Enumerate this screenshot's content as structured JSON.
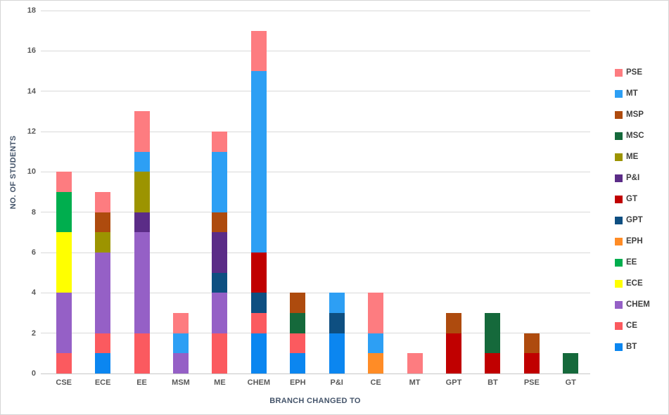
{
  "window": {
    "background": "#FFFFFF",
    "border_color": "#D6D6D6"
  },
  "axes": {
    "tick_color": "#595959",
    "title_color": "#44546A",
    "gridline_color": "#D9D9D9"
  },
  "chart_data": {
    "type": "bar",
    "stacked": true,
    "title": "",
    "xlabel": "BRANCH CHANGED TO",
    "ylabel": "NO. OF STUDENTS",
    "ylim": [
      0,
      18
    ],
    "yticks": [
      0,
      2,
      4,
      6,
      8,
      10,
      12,
      14,
      16,
      18
    ],
    "grid": true,
    "legend_position": "right",
    "categories": [
      "CSE",
      "ECE",
      "EE",
      "MSM",
      "ME",
      "CHEM",
      "EPH",
      "P&I",
      "CE",
      "MT",
      "GPT",
      "BT",
      "PSE",
      "GT"
    ],
    "series": [
      {
        "name": "BT",
        "color": "#0B86F0",
        "values": [
          0,
          1,
          0,
          0,
          0,
          2,
          1,
          2,
          0,
          0,
          0,
          0,
          0,
          0
        ]
      },
      {
        "name": "CE",
        "color": "#FB5A5F",
        "values": [
          1,
          1,
          2,
          0,
          2,
          1,
          1,
          0,
          0,
          0,
          0,
          0,
          0,
          0
        ]
      },
      {
        "name": "CHEM",
        "color": "#9560C6",
        "values": [
          3,
          4,
          5,
          1,
          2,
          0,
          0,
          0,
          0,
          0,
          0,
          0,
          0,
          0
        ]
      },
      {
        "name": "ECE",
        "color": "#FFFF00",
        "values": [
          3,
          0,
          0,
          0,
          0,
          0,
          0,
          0,
          0,
          0,
          0,
          0,
          0,
          0
        ]
      },
      {
        "name": "EE",
        "color": "#00AE4E",
        "values": [
          2,
          0,
          0,
          0,
          0,
          0,
          0,
          0,
          0,
          0,
          0,
          0,
          0,
          0
        ]
      },
      {
        "name": "EPH",
        "color": "#FF8C26",
        "values": [
          0,
          0,
          0,
          0,
          0,
          0,
          0,
          0,
          1,
          0,
          0,
          0,
          0,
          0
        ]
      },
      {
        "name": "GPT",
        "color": "#0E4F81",
        "values": [
          0,
          0,
          0,
          0,
          1,
          1,
          0,
          1,
          0,
          0,
          0,
          0,
          0,
          0
        ]
      },
      {
        "name": "GT",
        "color": "#C00000",
        "values": [
          0,
          0,
          0,
          0,
          0,
          2,
          0,
          0,
          0,
          0,
          2,
          1,
          1,
          0
        ]
      },
      {
        "name": "P&I",
        "color": "#5B2C87",
        "values": [
          0,
          0,
          1,
          0,
          2,
          0,
          0,
          0,
          0,
          0,
          0,
          0,
          0,
          0
        ]
      },
      {
        "name": "ME",
        "color": "#9C9400",
        "values": [
          0,
          1,
          2,
          0,
          0,
          0,
          0,
          0,
          0,
          0,
          0,
          0,
          0,
          0
        ]
      },
      {
        "name": "MSC",
        "color": "#15693B",
        "values": [
          0,
          0,
          0,
          0,
          0,
          0,
          1,
          0,
          0,
          0,
          0,
          2,
          0,
          1
        ]
      },
      {
        "name": "MSP",
        "color": "#AE4B0E",
        "values": [
          0,
          1,
          0,
          0,
          1,
          0,
          1,
          0,
          0,
          0,
          1,
          0,
          1,
          0
        ]
      },
      {
        "name": "MT",
        "color": "#2D9FF4",
        "values": [
          0,
          0,
          1,
          1,
          3,
          9,
          0,
          1,
          1,
          0,
          0,
          0,
          0,
          0
        ]
      },
      {
        "name": "PSE",
        "color": "#FD7C80",
        "values": [
          1,
          1,
          2,
          1,
          1,
          2,
          0,
          0,
          2,
          1,
          0,
          0,
          0,
          0
        ]
      }
    ],
    "legend_order": [
      "PSE",
      "MT",
      "MSP",
      "MSC",
      "ME",
      "P&I",
      "GT",
      "GPT",
      "EPH",
      "EE",
      "ECE",
      "CHEM",
      "CE",
      "BT"
    ]
  }
}
